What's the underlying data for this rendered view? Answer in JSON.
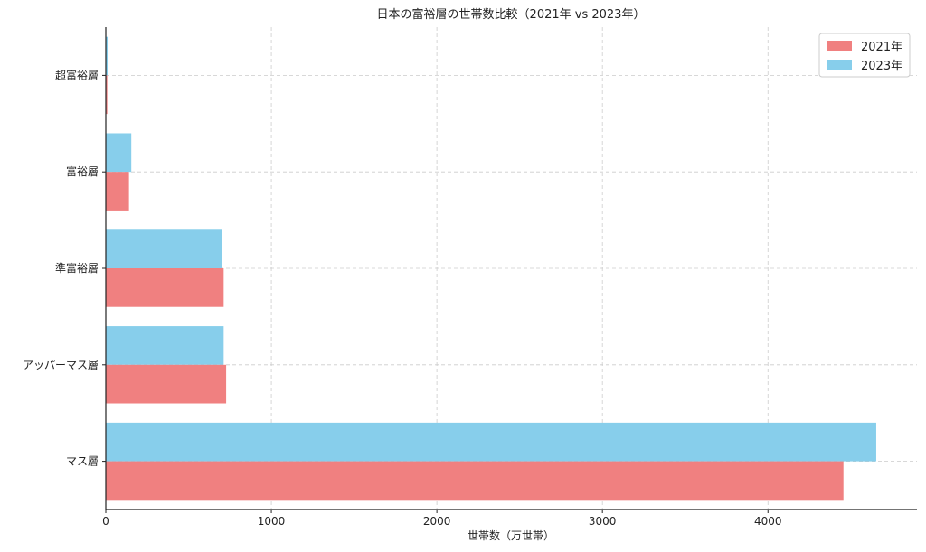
{
  "chart_data": {
    "type": "bar",
    "orientation": "horizontal",
    "title": "日本の富裕層の世帯数比較（2021年 vs 2023年）",
    "xlabel": "世帯数（万世帯）",
    "ylabel": "",
    "categories": [
      "超富裕層",
      "富裕層",
      "準富裕層",
      "アッパーマス層",
      "マス層"
    ],
    "series": [
      {
        "name": "2021年",
        "values": [
          9,
          140,
          712,
          727,
          4456
        ],
        "color": "#f08080"
      },
      {
        "name": "2023年",
        "values": [
          11,
          154,
          703,
          712,
          4654
        ],
        "color": "#87ceeb"
      }
    ],
    "xlim": [
      0,
      4900
    ],
    "xticks": [
      "0",
      "1000",
      "2000",
      "3000",
      "4000"
    ],
    "xtick_values": [
      0,
      1000,
      2000,
      3000,
      4000
    ],
    "grid": true,
    "legend_position": "top-right"
  }
}
